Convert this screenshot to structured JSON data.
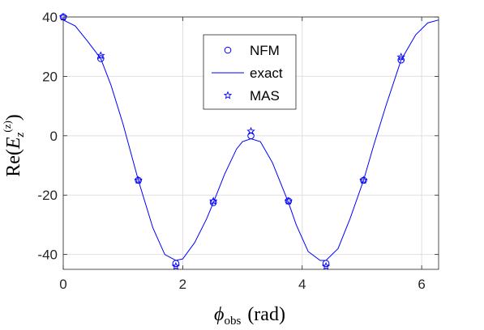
{
  "chart_data": {
    "type": "line",
    "xlabel": {
      "symbol": "ϕ",
      "sub": "obs",
      "unit": "(rad)"
    },
    "ylabel": {
      "prefix": "Re(",
      "symbol": "E",
      "sub": "z",
      "sup": "(z)",
      "suffix": ")"
    },
    "xlim": [
      0,
      6.2832
    ],
    "ylim": [
      -45,
      40
    ],
    "xticks": [
      0,
      2,
      4,
      6
    ],
    "xtick_labels": [
      "0",
      "2",
      "4",
      "6"
    ],
    "yticks": [
      40,
      20,
      0,
      -20,
      -40
    ],
    "ytick_labels": [
      "40",
      "20",
      "0",
      "-20",
      "-40"
    ],
    "grid": true,
    "legend_position": "top-center",
    "colors": {
      "series": "#0000ff",
      "axis": "#262626",
      "grid": "#dfdfdf"
    },
    "series": [
      {
        "name": "NFM",
        "marker": "circle",
        "x": [
          0,
          0.628,
          1.257,
          1.885,
          2.513,
          3.142,
          3.77,
          4.398,
          5.027,
          5.655
        ],
        "y": [
          40,
          26,
          -15,
          -43,
          -22.5,
          0,
          -22,
          -43,
          -15,
          25.5
        ]
      },
      {
        "name": "exact",
        "marker": "line",
        "x": [
          0,
          0.2,
          0.4,
          0.628,
          0.8,
          1.0,
          1.257,
          1.5,
          1.7,
          1.885,
          2.0,
          2.2,
          2.4,
          2.513,
          2.7,
          2.9,
          3.0,
          3.142,
          3.3,
          3.5,
          3.6,
          3.77,
          3.9,
          4.1,
          4.3,
          4.398,
          4.6,
          4.8,
          5.027,
          5.2,
          5.4,
          5.655,
          5.9,
          6.1,
          6.2832
        ],
        "y": [
          39,
          37,
          32,
          26,
          17,
          4,
          -15,
          -31,
          -40,
          -42,
          -41.5,
          -36,
          -28,
          -22.5,
          -13,
          -4.5,
          -2,
          -1,
          -2,
          -9,
          -14,
          -22.5,
          -30,
          -39,
          -42,
          -42,
          -38,
          -28,
          -15,
          -3,
          10,
          25.5,
          34,
          38,
          39
        ]
      },
      {
        "name": "MAS",
        "marker": "star",
        "x": [
          0,
          0.628,
          1.257,
          1.885,
          2.513,
          3.142,
          3.77,
          4.398,
          5.027,
          5.655
        ],
        "y": [
          40,
          27,
          -15,
          -44,
          -22,
          1.5,
          -22,
          -44,
          -15,
          26.5
        ]
      }
    ]
  }
}
